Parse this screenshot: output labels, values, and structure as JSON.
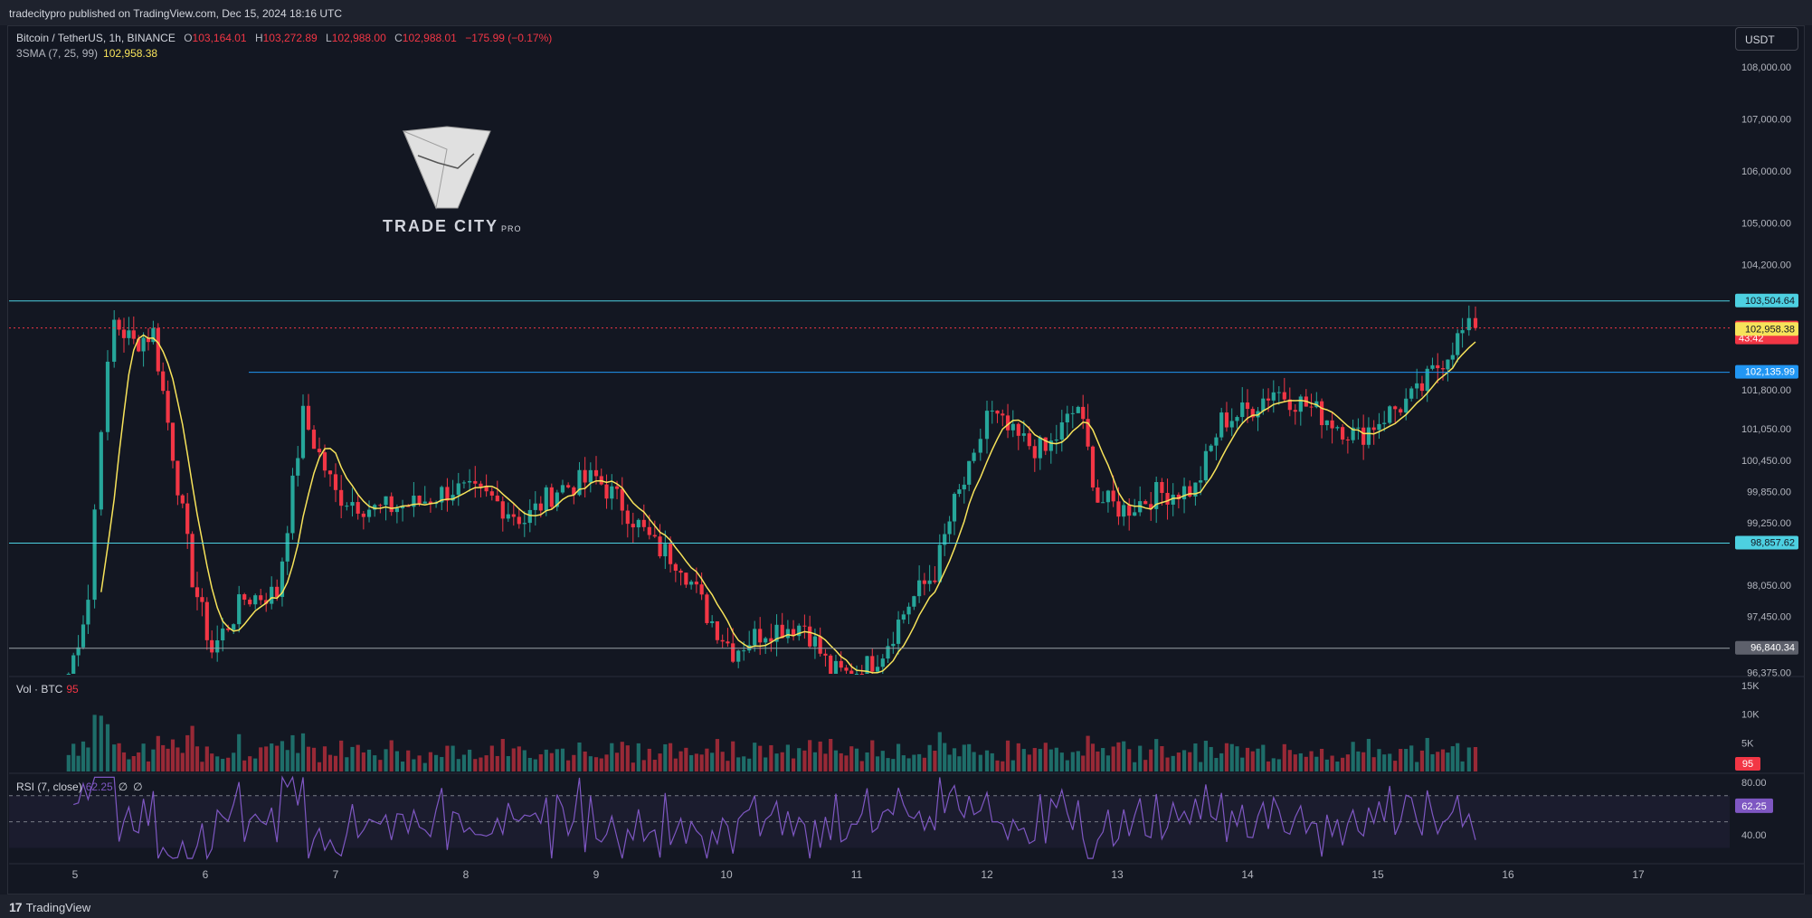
{
  "header": {
    "published_text": "tradecitypro published on TradingView.com, Dec 15, 2024 18:16 UTC"
  },
  "footer": {
    "brand": "TradingView",
    "brand_mark": "17"
  },
  "currency_button": "USDT",
  "legend": {
    "symbol": "Bitcoin / TetherUS, 1h, BINANCE",
    "o_label": "O",
    "o_value": "103,164.01",
    "h_label": "H",
    "h_value": "103,272.89",
    "l_label": "L",
    "l_value": "102,988.00",
    "c_label": "C",
    "c_value": "102,988.01",
    "change": "−175.99 (−0.17%)",
    "sma_label": "3SMA (7, 25, 99)",
    "sma_value": "102,958.38"
  },
  "logo": {
    "name": "TRADE CITY",
    "suffix": "PRO"
  },
  "volume_legend": {
    "label": "Vol · BTC",
    "value": "95"
  },
  "rsi_legend": {
    "label": "RSI (7, close)",
    "value": "62.25",
    "extra1": "∅",
    "extra2": "∅"
  },
  "colors": {
    "up": "#26a69a",
    "down": "#f23645",
    "sma": "#f7e35a",
    "cyan_line": "#4dd0e1",
    "blue_line": "#2196f3",
    "rsi": "#7e57c2",
    "grid_bg": "#131722"
  },
  "chart_data": [
    {
      "type": "candlestick",
      "title": "Bitcoin / TetherUS, 1h, BINANCE",
      "x_ticks": [
        "5",
        "6",
        "7",
        "8",
        "9",
        "10",
        "11",
        "12",
        "13",
        "14",
        "15",
        "16",
        "17"
      ],
      "y_ticks": [
        "108,000.00",
        "107,000.00",
        "106,000.00",
        "105,000.00",
        "104,200.00",
        "101,800.00",
        "101,050.00",
        "100,450.00",
        "99,850.00",
        "99,250.00",
        "98,050.00",
        "97,450.00",
        "96,375.00"
      ],
      "ylim": [
        96350,
        108500
      ],
      "price_labels": [
        {
          "text": "103,504.64",
          "value": 103504.64,
          "kind": "hline"
        },
        {
          "text": "102,988.01",
          "sub": "43:42",
          "value": 102988.01,
          "kind": "last"
        },
        {
          "text": "102,958.38",
          "value": 102958.38,
          "kind": "sma"
        },
        {
          "text": "102,135.99",
          "value": 102135.99,
          "kind": "hline2"
        },
        {
          "text": "98,857.62",
          "value": 98857.62,
          "kind": "hline"
        },
        {
          "text": "96,840.34",
          "value": 96840.34,
          "kind": "hline3"
        }
      ],
      "key_closes": [
        {
          "day": 4.95,
          "price": 96300
        },
        {
          "day": 5.1,
          "price": 97800
        },
        {
          "day": 5.2,
          "price": 101200
        },
        {
          "day": 5.3,
          "price": 103100
        },
        {
          "day": 5.45,
          "price": 102700
        },
        {
          "day": 5.6,
          "price": 102900
        },
        {
          "day": 5.75,
          "price": 100600
        },
        {
          "day": 5.9,
          "price": 98200
        },
        {
          "day": 6.05,
          "price": 96800
        },
        {
          "day": 6.3,
          "price": 97800
        },
        {
          "day": 6.55,
          "price": 97900
        },
        {
          "day": 6.75,
          "price": 101300
        },
        {
          "day": 7.0,
          "price": 99800
        },
        {
          "day": 7.3,
          "price": 99500
        },
        {
          "day": 7.6,
          "price": 99600
        },
        {
          "day": 7.9,
          "price": 99900
        },
        {
          "day": 8.2,
          "price": 99700
        },
        {
          "day": 8.45,
          "price": 99300
        },
        {
          "day": 8.7,
          "price": 99900
        },
        {
          "day": 9.0,
          "price": 100100
        },
        {
          "day": 9.2,
          "price": 99600
        },
        {
          "day": 9.45,
          "price": 98800
        },
        {
          "day": 9.65,
          "price": 98500
        },
        {
          "day": 9.85,
          "price": 97500
        },
        {
          "day": 10.05,
          "price": 96800
        },
        {
          "day": 10.3,
          "price": 97200
        },
        {
          "day": 10.6,
          "price": 97300
        },
        {
          "day": 10.8,
          "price": 96400
        },
        {
          "day": 11.0,
          "price": 96300
        },
        {
          "day": 11.2,
          "price": 96800
        },
        {
          "day": 11.4,
          "price": 97700
        },
        {
          "day": 11.6,
          "price": 98300
        },
        {
          "day": 11.75,
          "price": 99600
        },
        {
          "day": 11.9,
          "price": 100400
        },
        {
          "day": 12.0,
          "price": 101400
        },
        {
          "day": 12.2,
          "price": 100900
        },
        {
          "day": 12.45,
          "price": 100600
        },
        {
          "day": 12.7,
          "price": 101500
        },
        {
          "day": 12.85,
          "price": 99700
        },
        {
          "day": 13.05,
          "price": 99500
        },
        {
          "day": 13.3,
          "price": 99800
        },
        {
          "day": 13.6,
          "price": 99900
        },
        {
          "day": 13.8,
          "price": 101200
        },
        {
          "day": 14.0,
          "price": 101400
        },
        {
          "day": 14.2,
          "price": 101800
        },
        {
          "day": 14.45,
          "price": 101500
        },
        {
          "day": 14.65,
          "price": 101200
        },
        {
          "day": 14.85,
          "price": 100900
        },
        {
          "day": 15.05,
          "price": 101300
        },
        {
          "day": 15.3,
          "price": 101700
        },
        {
          "day": 15.5,
          "price": 102400
        },
        {
          "day": 15.65,
          "price": 102900
        },
        {
          "day": 15.75,
          "price": 102988
        }
      ],
      "sma_last": 102958.38
    },
    {
      "type": "bar",
      "title": "Vol · BTC",
      "y_ticks": [
        "15K",
        "10K",
        "5K"
      ],
      "ylim": [
        0,
        15000
      ],
      "last_value": 95
    },
    {
      "type": "line",
      "title": "RSI (7, close)",
      "y_ticks": [
        "80.00",
        "40.00"
      ],
      "ylim": [
        20,
        85
      ],
      "levels": [
        70,
        50
      ],
      "last_value": 62.25,
      "last_label": "62.25"
    }
  ]
}
